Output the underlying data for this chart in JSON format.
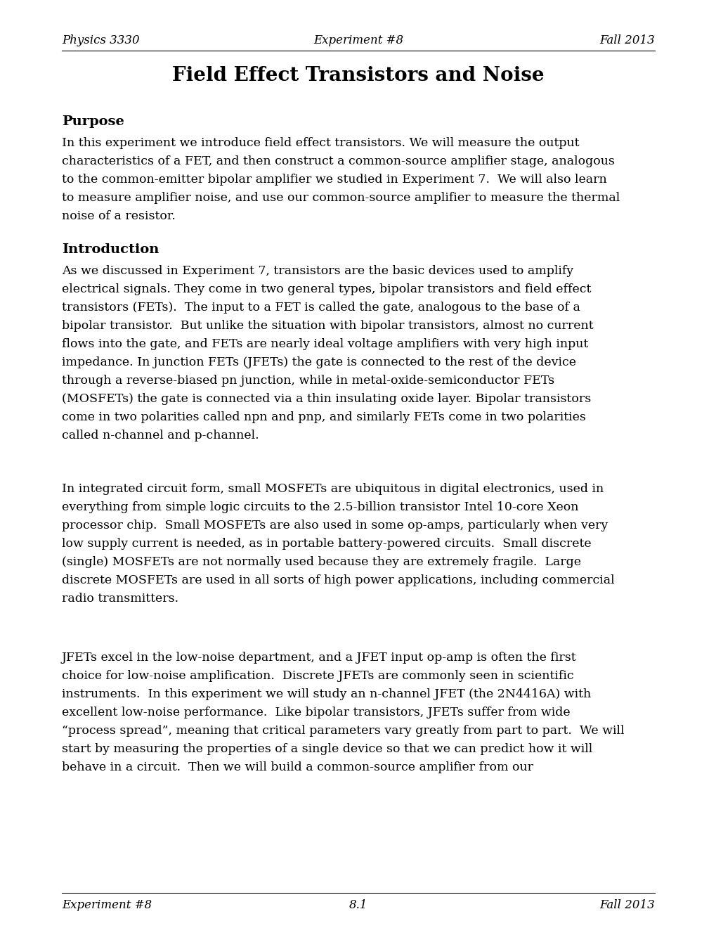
{
  "header_left": "Physics 3330",
  "header_center": "Experiment #8",
  "header_right": "Fall 2013",
  "footer_left": "Experiment #8",
  "footer_center": "8.1",
  "footer_right": "Fall 2013",
  "title": "Field Effect Transistors and Noise",
  "section1_heading": "Purpose",
  "section1_text": [
    "In this experiment we introduce field effect transistors. We will measure the output",
    "characteristics of a FET, and then construct a common-source amplifier stage, analogous",
    "to the common-emitter bipolar amplifier we studied in Experiment 7.  We will also learn",
    "to measure amplifier noise, and use our common-source amplifier to measure the thermal",
    "noise of a resistor."
  ],
  "section2_heading": "Introduction",
  "section2_para1": [
    "As we discussed in Experiment 7, transistors are the basic devices used to amplify",
    "electrical signals. They come in two general types, bipolar transistors and field effect",
    "transistors (FETs).  The input to a FET is called the gate, analogous to the base of a",
    "bipolar transistor.  But unlike the situation with bipolar transistors, almost no current",
    "flows into the gate, and FETs are nearly ideal voltage amplifiers with very high input",
    "impedance. In junction FETs (JFETs) the gate is connected to the rest of the device",
    "through a reverse-biased pn junction, while in metal-oxide-semiconductor FETs",
    "(MOSFETs) the gate is connected via a thin insulating oxide layer. Bipolar transistors",
    "come in two polarities called npn and pnp, and similarly FETs come in two polarities",
    "called n-channel and p-channel."
  ],
  "section2_para2": [
    "In integrated circuit form, small MOSFETs are ubiquitous in digital electronics, used in",
    "everything from simple logic circuits to the 2.5-billion transistor Intel 10-core Xeon",
    "processor chip.  Small MOSFETs are also used in some op-amps, particularly when very",
    "low supply current is needed, as in portable battery-powered circuits.  Small discrete",
    "(single) MOSFETs are not normally used because they are extremely fragile.  Large",
    "discrete MOSFETs are used in all sorts of high power applications, including commercial",
    "radio transmitters."
  ],
  "section2_para3": [
    "JFETs excel in the low-noise department, and a JFET input op-amp is often the first",
    "choice for low-noise amplification.  Discrete JFETs are commonly seen in scientific",
    "instruments.  In this experiment we will study an n-channel JFET (the 2N4416A) with",
    "excellent low-noise performance.  Like bipolar transistors, JFETs suffer from wide",
    "“process spread”, meaning that critical parameters vary greatly from part to part.  We will",
    "start by measuring the properties of a single device so that we can predict how it will",
    "behave in a circuit.  Then we will build a common-source amplifier from our"
  ],
  "bg_color": "#ffffff",
  "text_color": "#000000"
}
